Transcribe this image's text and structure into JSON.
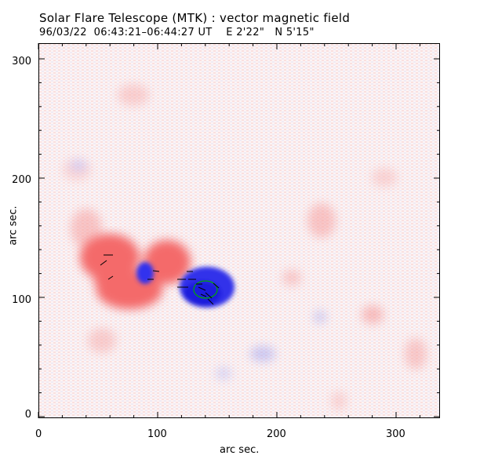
{
  "title": {
    "instrument": "Solar Flare Telescope (MTK) : vector magnetic field",
    "date": "96/03/22",
    "time_range": "06:43:21–06:44:27 UT",
    "east_offset": "E 2'22\"",
    "north_offset": "N 5'15\""
  },
  "axes": {
    "xlabel": "arc sec.",
    "ylabel": "arc sec.",
    "xticks": [
      "0",
      "100",
      "200",
      "300"
    ],
    "yticks": [
      "0",
      "100",
      "200",
      "300"
    ],
    "xlim": [
      0,
      338
    ],
    "ylim": [
      0,
      315
    ]
  },
  "colors": {
    "positive_polarity": "#f07070",
    "negative_polarity": "#3030ee",
    "contour": "#00aa00",
    "vectors": "#000000"
  }
}
